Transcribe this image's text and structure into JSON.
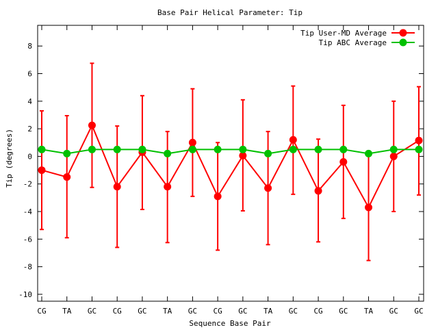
{
  "chart_data": {
    "type": "line",
    "title": "Base Pair Helical Parameter: Tip",
    "xlabel": "Sequence Base Pair",
    "ylabel": "Tip (degrees)",
    "ylim": [
      -10.5,
      9.5
    ],
    "yticks": [
      -10,
      -8,
      -6,
      -4,
      -2,
      0,
      2,
      4,
      6,
      8
    ],
    "categories": [
      "CG",
      "TA",
      "GC",
      "CG",
      "GC",
      "TA",
      "GC",
      "CG",
      "GC",
      "TA",
      "GC",
      "CG",
      "GC",
      "TA",
      "GC",
      "GC"
    ],
    "grid": false,
    "legend_position": "top-right",
    "series": [
      {
        "name": "Tip User-MD Average",
        "color": "#ff0000",
        "values": [
          -1.0,
          -1.5,
          2.25,
          -2.2,
          0.3,
          -2.2,
          1.0,
          -2.9,
          0.05,
          -2.3,
          1.2,
          -2.5,
          -0.4,
          -3.7,
          0.0,
          1.15
        ],
        "err_low": [
          -5.3,
          -5.9,
          -2.25,
          -6.6,
          -3.85,
          -6.25,
          -2.9,
          -6.8,
          -3.95,
          -6.4,
          -2.75,
          -6.2,
          -4.5,
          -7.55,
          -4.0,
          -2.8
        ],
        "err_high": [
          3.3,
          2.95,
          6.75,
          2.2,
          4.4,
          1.8,
          4.9,
          1.0,
          4.1,
          1.8,
          5.1,
          1.25,
          3.7,
          0.25,
          4.0,
          5.05
        ]
      },
      {
        "name": "Tip ABC Average",
        "color": "#00c000",
        "values": [
          0.5,
          0.2,
          0.5,
          0.5,
          0.5,
          0.2,
          0.5,
          0.5,
          0.5,
          0.2,
          0.5,
          0.5,
          0.5,
          0.2,
          0.5,
          0.5
        ]
      }
    ]
  }
}
